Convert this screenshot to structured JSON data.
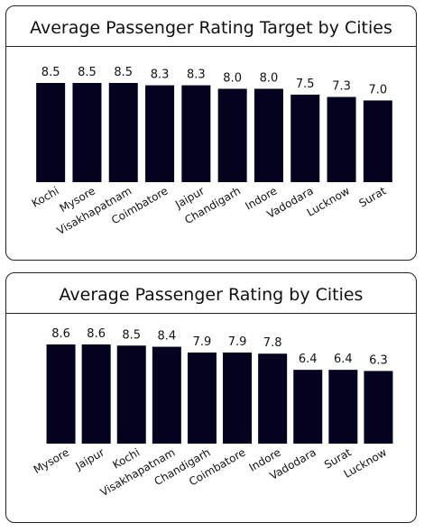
{
  "colors": {
    "bar": "#03031f",
    "text": "#111111"
  },
  "chart_data": [
    {
      "type": "bar",
      "title": "Average Passenger Rating Target by Cities",
      "categories": [
        "Kochi",
        "Mysore",
        "Visakhapatnam",
        "Coimbatore",
        "Jaipur",
        "Chandigarh",
        "Indore",
        "Vadodara",
        "Lucknow",
        "Surat"
      ],
      "values": [
        8.5,
        8.5,
        8.5,
        8.3,
        8.3,
        8.0,
        8.0,
        7.5,
        7.3,
        7.0
      ],
      "value_labels": [
        "8.5",
        "8.5",
        "8.5",
        "8.3",
        "8.3",
        "8.0",
        "8.0",
        "7.5",
        "7.3",
        "7.0"
      ],
      "ylim": [
        0,
        8.5
      ],
      "grid": false,
      "legend": "none"
    },
    {
      "type": "bar",
      "title": "Average Passenger Rating by Cities",
      "categories": [
        "Mysore",
        "Jaipur",
        "Kochi",
        "Visakhapatnam",
        "Chandigarh",
        "Coimbatore",
        "Indore",
        "Vadodara",
        "Surat",
        "Lucknow"
      ],
      "values": [
        8.6,
        8.6,
        8.5,
        8.4,
        7.9,
        7.9,
        7.8,
        6.4,
        6.4,
        6.3
      ],
      "value_labels": [
        "8.6",
        "8.6",
        "8.5",
        "8.4",
        "7.9",
        "7.9",
        "7.8",
        "6.4",
        "6.4",
        "6.3"
      ],
      "ylim": [
        0,
        8.6
      ],
      "grid": false,
      "legend": "none"
    }
  ]
}
